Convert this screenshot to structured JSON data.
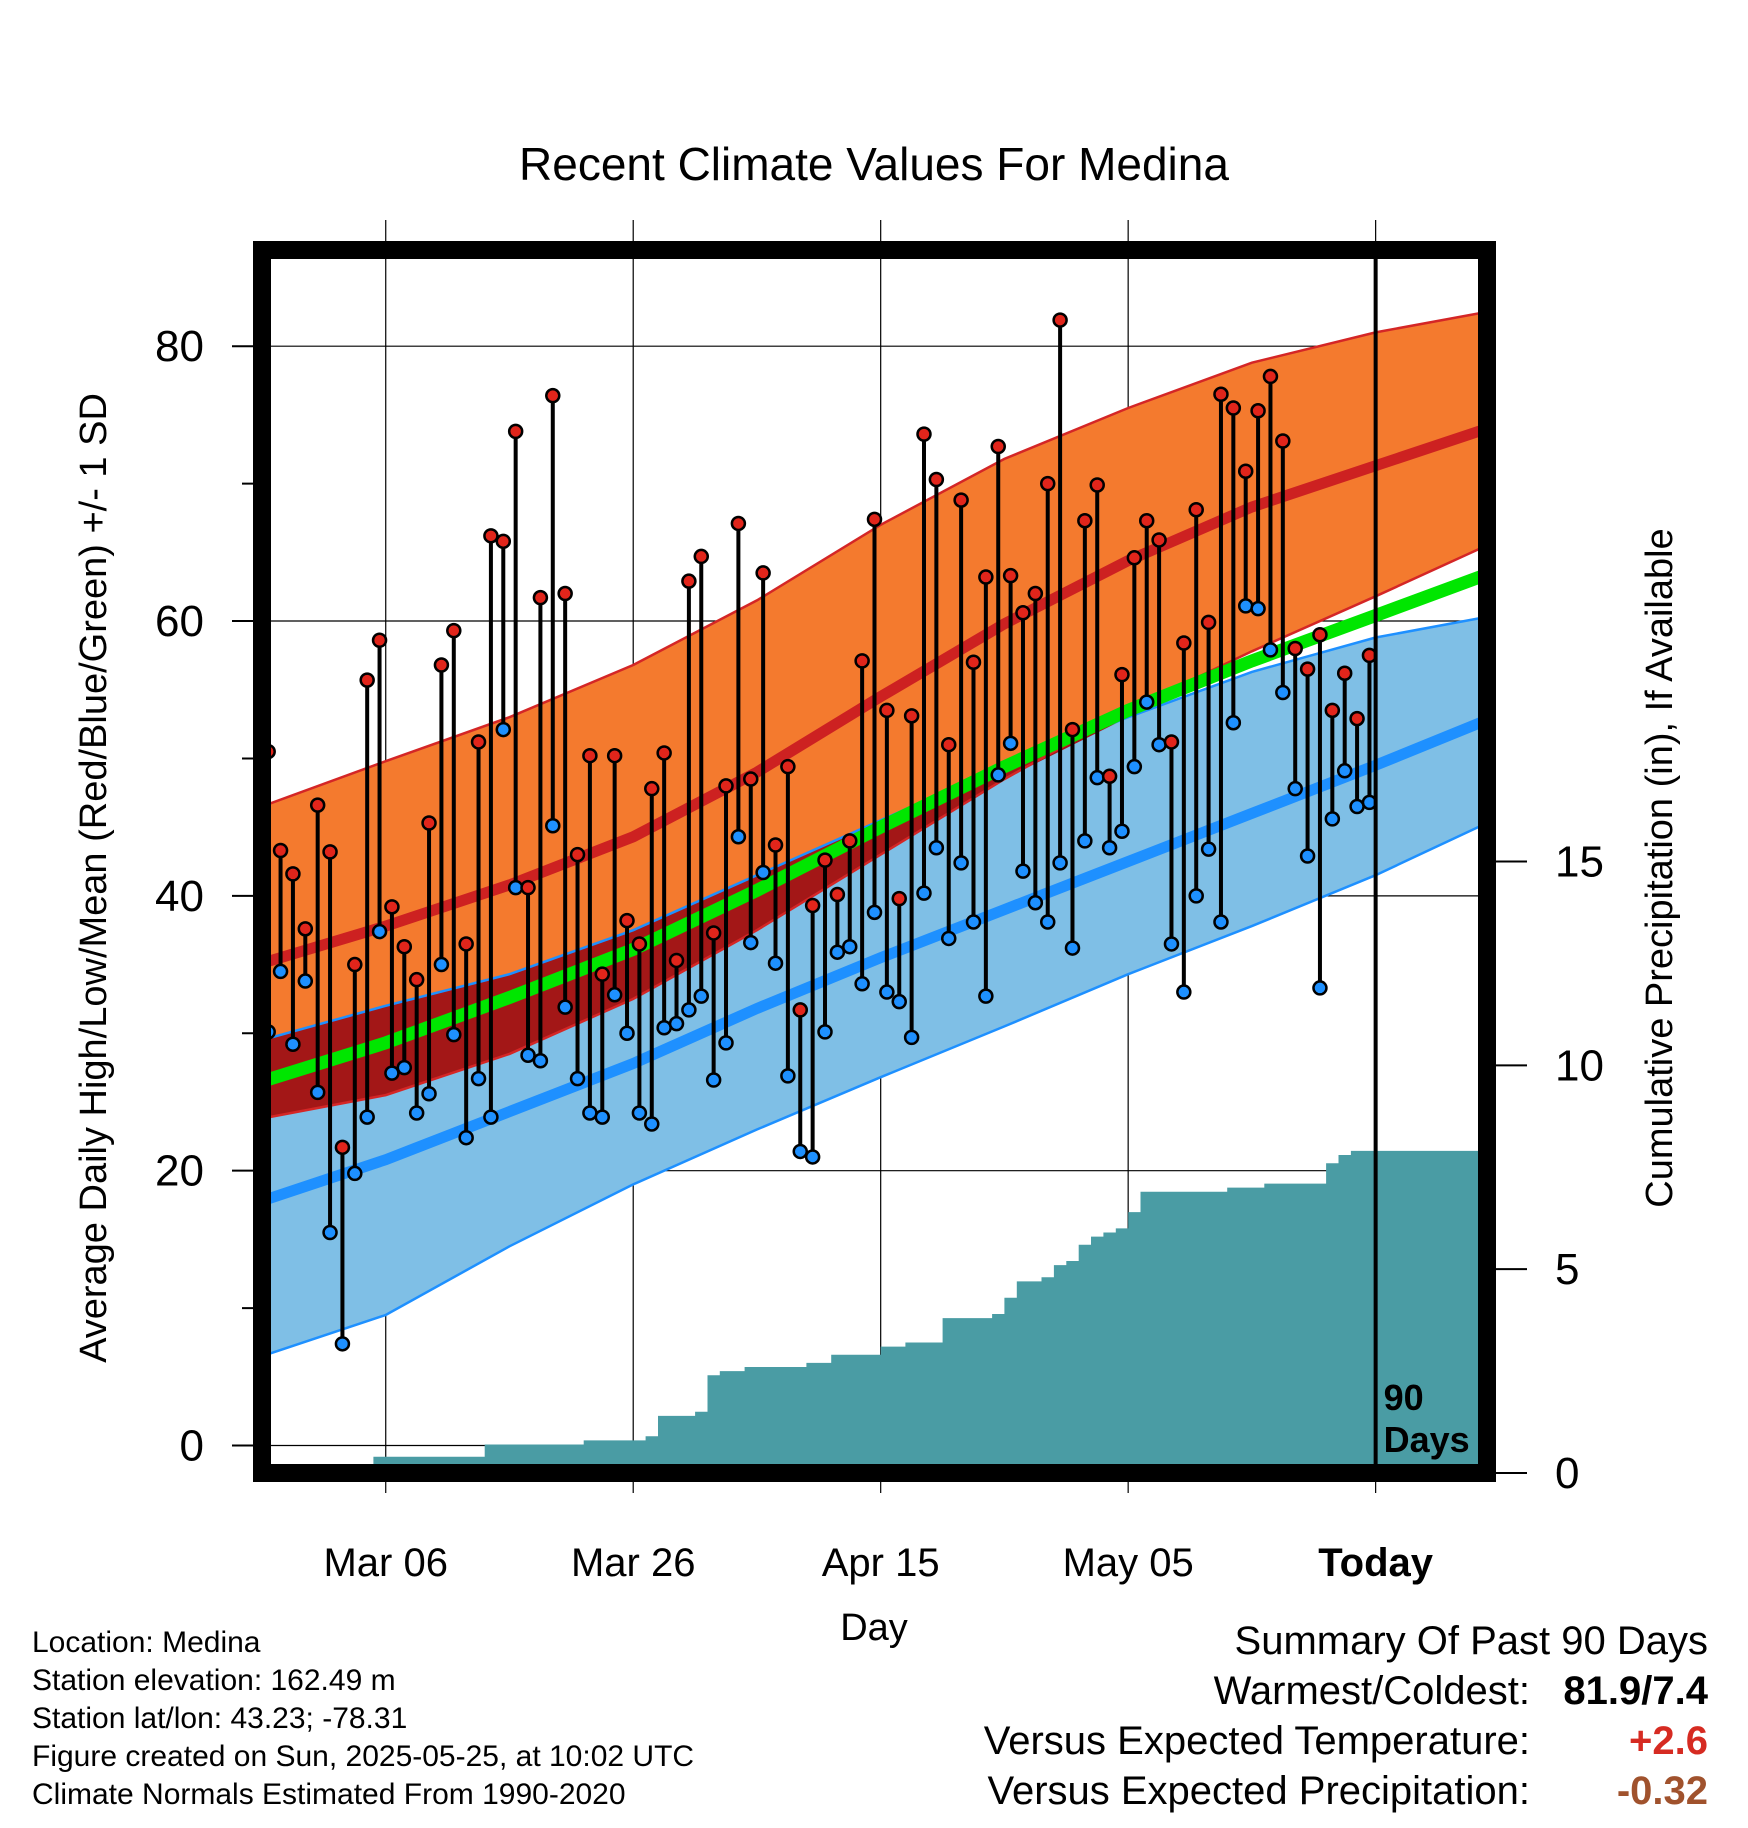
{
  "chart_data": {
    "type": "line",
    "title": "Recent Climate Values For Medina",
    "xlabel": "Day",
    "ylabel": "Average Daily High/Low/Mean (Red/Blue/Green) +/- 1 SD",
    "y2label": "Cumulative Precipitation (in), If Available",
    "xlim": [
      "2025-02-24",
      "2025-06-03"
    ],
    "ylim": [
      -2,
      87
    ],
    "y2lim": [
      0,
      30
    ],
    "yticks": [
      0,
      20,
      40,
      60,
      80
    ],
    "y2ticks": [
      0,
      5,
      10,
      15
    ],
    "x_tick_labels": [
      {
        "date": "2025-03-06",
        "label": "Mar 06"
      },
      {
        "date": "2025-03-26",
        "label": "Mar 26"
      },
      {
        "date": "2025-04-15",
        "label": "Apr 15"
      },
      {
        "date": "2025-05-05",
        "label": "May 05"
      },
      {
        "date": "2025-05-25",
        "label": "Today"
      }
    ],
    "today_marker": {
      "date": "2025-05-25",
      "label_line1": "90",
      "label_line2": "Days"
    },
    "grid": true,
    "normals": {
      "dates": [
        "2025-02-24",
        "2025-03-06",
        "2025-03-16",
        "2025-03-26",
        "2025-04-05",
        "2025-04-15",
        "2025-04-25",
        "2025-05-05",
        "2025-05-15",
        "2025-05-25",
        "2025-06-03"
      ],
      "high_mean": [
        35.1,
        37.8,
        40.8,
        44.3,
        49.0,
        54.5,
        59.8,
        64.4,
        68.3,
        71.3,
        74.0
      ],
      "high_upper": [
        46.5,
        49.8,
        53.0,
        56.8,
        61.5,
        67.0,
        71.8,
        75.5,
        78.8,
        81.0,
        82.5
      ],
      "high_lower": [
        23.8,
        25.5,
        28.5,
        32.5,
        37.5,
        43.0,
        48.5,
        53.5,
        57.8,
        61.8,
        65.5
      ],
      "low_mean": [
        17.8,
        20.8,
        24.3,
        27.8,
        31.8,
        35.5,
        39.0,
        42.5,
        46.0,
        49.5,
        52.8
      ],
      "low_upper": [
        29.5,
        32.0,
        34.3,
        37.5,
        41.5,
        45.5,
        49.5,
        53.0,
        56.3,
        58.8,
        60.3
      ],
      "low_lower": [
        6.5,
        9.5,
        14.5,
        19.0,
        23.0,
        26.8,
        30.5,
        34.3,
        37.8,
        41.5,
        45.3
      ],
      "mean": [
        26.5,
        29.3,
        32.6,
        36.1,
        40.4,
        45.0,
        49.4,
        53.5,
        57.1,
        60.4,
        63.4
      ]
    },
    "observed": {
      "series_colors": {
        "high": "#e1251b",
        "low": "#1e90ff"
      },
      "days": [
        {
          "date": "2025-02-24",
          "high": 50.5,
          "low": 30.1
        },
        {
          "date": "2025-02-25",
          "high": 43.3,
          "low": 34.5
        },
        {
          "date": "2025-02-26",
          "high": 41.6,
          "low": 29.2
        },
        {
          "date": "2025-02-27",
          "high": 37.6,
          "low": 33.8
        },
        {
          "date": "2025-02-28",
          "high": 46.6,
          "low": 25.7
        },
        {
          "date": "2025-03-01",
          "high": 43.2,
          "low": 15.5
        },
        {
          "date": "2025-03-02",
          "high": 21.7,
          "low": 7.4
        },
        {
          "date": "2025-03-03",
          "high": 35.0,
          "low": 19.8
        },
        {
          "date": "2025-03-04",
          "high": 55.7,
          "low": 23.9
        },
        {
          "date": "2025-03-05",
          "high": 58.6,
          "low": 37.4
        },
        {
          "date": "2025-03-06",
          "high": 39.2,
          "low": 27.1
        },
        {
          "date": "2025-03-07",
          "high": 36.3,
          "low": 27.5
        },
        {
          "date": "2025-03-08",
          "high": 33.9,
          "low": 24.2
        },
        {
          "date": "2025-03-09",
          "high": 45.3,
          "low": 25.6
        },
        {
          "date": "2025-03-10",
          "high": 56.8,
          "low": 35.0
        },
        {
          "date": "2025-03-11",
          "high": 59.3,
          "low": 29.9
        },
        {
          "date": "2025-03-12",
          "high": 36.5,
          "low": 22.4
        },
        {
          "date": "2025-03-13",
          "high": 51.2,
          "low": 26.7
        },
        {
          "date": "2025-03-14",
          "high": 66.2,
          "low": 23.9
        },
        {
          "date": "2025-03-15",
          "high": 65.8,
          "low": 52.1
        },
        {
          "date": "2025-03-16",
          "high": 73.8,
          "low": 40.6
        },
        {
          "date": "2025-03-17",
          "high": 40.6,
          "low": 28.4
        },
        {
          "date": "2025-03-18",
          "high": 61.7,
          "low": 28.0
        },
        {
          "date": "2025-03-19",
          "high": 76.4,
          "low": 45.1
        },
        {
          "date": "2025-03-20",
          "high": 62.0,
          "low": 31.9
        },
        {
          "date": "2025-03-21",
          "high": 43.0,
          "low": 26.7
        },
        {
          "date": "2025-03-22",
          "high": 50.2,
          "low": 24.2
        },
        {
          "date": "2025-03-23",
          "high": 34.3,
          "low": 23.9
        },
        {
          "date": "2025-03-24",
          "high": 50.2,
          "low": 32.8
        },
        {
          "date": "2025-03-25",
          "high": 38.2,
          "low": 30.0
        },
        {
          "date": "2025-03-26",
          "high": 36.5,
          "low": 24.2
        },
        {
          "date": "2025-03-27",
          "high": 47.8,
          "low": 23.4
        },
        {
          "date": "2025-03-28",
          "high": 50.4,
          "low": 30.4
        },
        {
          "date": "2025-03-29",
          "high": 35.3,
          "low": 30.7
        },
        {
          "date": "2025-03-30",
          "high": 62.9,
          "low": 31.7
        },
        {
          "date": "2025-03-31",
          "high": 64.7,
          "low": 32.7
        },
        {
          "date": "2025-04-01",
          "high": 37.3,
          "low": 26.6
        },
        {
          "date": "2025-04-02",
          "high": 48.0,
          "low": 29.3
        },
        {
          "date": "2025-04-03",
          "high": 67.1,
          "low": 44.3
        },
        {
          "date": "2025-04-04",
          "high": 48.5,
          "low": 36.6
        },
        {
          "date": "2025-04-05",
          "high": 63.5,
          "low": 41.7
        },
        {
          "date": "2025-04-06",
          "high": 43.7,
          "low": 35.1
        },
        {
          "date": "2025-04-07",
          "high": 49.4,
          "low": 26.9
        },
        {
          "date": "2025-04-08",
          "high": 31.7,
          "low": 21.4
        },
        {
          "date": "2025-04-09",
          "high": 39.3,
          "low": 21.0
        },
        {
          "date": "2025-04-10",
          "high": 42.6,
          "low": 30.1
        },
        {
          "date": "2025-04-11",
          "high": 40.1,
          "low": 35.9
        },
        {
          "date": "2025-04-12",
          "high": 44.0,
          "low": 36.3
        },
        {
          "date": "2025-04-13",
          "high": 57.1,
          "low": 33.6
        },
        {
          "date": "2025-04-14",
          "high": 67.4,
          "low": 38.8
        },
        {
          "date": "2025-04-15",
          "high": 53.5,
          "low": 33.0
        },
        {
          "date": "2025-04-16",
          "high": 39.8,
          "low": 32.3
        },
        {
          "date": "2025-04-17",
          "high": 53.1,
          "low": 29.7
        },
        {
          "date": "2025-04-18",
          "high": 73.6,
          "low": 40.2
        },
        {
          "date": "2025-04-19",
          "high": 70.3,
          "low": 43.5
        },
        {
          "date": "2025-04-20",
          "high": 51.0,
          "low": 36.9
        },
        {
          "date": "2025-04-21",
          "high": 68.8,
          "low": 42.4
        },
        {
          "date": "2025-04-22",
          "high": 57.0,
          "low": 38.1
        },
        {
          "date": "2025-04-23",
          "high": 63.2,
          "low": 32.7
        },
        {
          "date": "2025-04-24",
          "high": 72.7,
          "low": 48.8
        },
        {
          "date": "2025-04-25",
          "high": 63.3,
          "low": 51.1
        },
        {
          "date": "2025-04-26",
          "high": 60.6,
          "low": 41.8
        },
        {
          "date": "2025-04-27",
          "high": 62.0,
          "low": 39.5
        },
        {
          "date": "2025-04-28",
          "high": 70.0,
          "low": 38.1
        },
        {
          "date": "2025-04-29",
          "high": 81.9,
          "low": 42.4
        },
        {
          "date": "2025-04-30",
          "high": 52.1,
          "low": 36.2
        },
        {
          "date": "2025-05-01",
          "high": 67.3,
          "low": 44.0
        },
        {
          "date": "2025-05-02",
          "high": 69.9,
          "low": 48.6
        },
        {
          "date": "2025-05-03",
          "high": 48.7,
          "low": 43.5
        },
        {
          "date": "2025-05-04",
          "high": 56.1,
          "low": 44.7
        },
        {
          "date": "2025-05-05",
          "high": 64.6,
          "low": 49.4
        },
        {
          "date": "2025-05-06",
          "high": 67.3,
          "low": 54.1
        },
        {
          "date": "2025-05-07",
          "high": 65.9,
          "low": 51.0
        },
        {
          "date": "2025-05-08",
          "high": 51.2,
          "low": 36.5
        },
        {
          "date": "2025-05-09",
          "high": 58.4,
          "low": 33.0
        },
        {
          "date": "2025-05-10",
          "high": 68.1,
          "low": 40.0
        },
        {
          "date": "2025-05-11",
          "high": 59.9,
          "low": 43.4
        },
        {
          "date": "2025-05-12",
          "high": 76.5,
          "low": 38.1
        },
        {
          "date": "2025-05-13",
          "high": 75.5,
          "low": 52.6
        },
        {
          "date": "2025-05-14",
          "high": 70.9,
          "low": 61.1
        },
        {
          "date": "2025-05-15",
          "high": 75.3,
          "low": 60.9
        },
        {
          "date": "2025-05-16",
          "high": 77.8,
          "low": 57.9
        },
        {
          "date": "2025-05-17",
          "high": 73.1,
          "low": 54.8
        },
        {
          "date": "2025-05-18",
          "high": 58.0,
          "low": 47.8
        },
        {
          "date": "2025-05-19",
          "high": 56.5,
          "low": 42.9
        },
        {
          "date": "2025-05-20",
          "high": 59.0,
          "low": 33.3
        },
        {
          "date": "2025-05-21",
          "high": 53.5,
          "low": 45.6
        },
        {
          "date": "2025-05-22",
          "high": 56.2,
          "low": 49.1
        },
        {
          "date": "2025-05-23",
          "high": 52.9,
          "low": 46.5
        },
        {
          "date": "2025-05-24",
          "high": 57.5,
          "low": 46.8
        }
      ]
    },
    "cumulative_precipitation": {
      "dates": [
        "2025-02-24",
        "2025-03-04",
        "2025-03-05",
        "2025-03-13",
        "2025-03-14",
        "2025-03-20",
        "2025-03-22",
        "2025-03-27",
        "2025-03-28",
        "2025-03-31",
        "2025-04-01",
        "2025-04-02",
        "2025-04-04",
        "2025-04-09",
        "2025-04-11",
        "2025-04-14",
        "2025-04-15",
        "2025-04-17",
        "2025-04-19",
        "2025-04-20",
        "2025-04-24",
        "2025-04-25",
        "2025-04-26",
        "2025-04-28",
        "2025-04-29",
        "2025-04-30",
        "2025-05-01",
        "2025-05-02",
        "2025-05-03",
        "2025-05-04",
        "2025-05-05",
        "2025-05-06",
        "2025-05-07",
        "2025-05-08",
        "2025-05-13",
        "2025-05-16",
        "2025-05-20",
        "2025-05-21",
        "2025-05-22",
        "2025-05-23",
        "2025-06-03"
      ],
      "inches": [
        0.0,
        0.0,
        0.4,
        0.4,
        0.7,
        0.7,
        0.8,
        0.9,
        1.4,
        1.5,
        2.4,
        2.5,
        2.6,
        2.7,
        2.9,
        2.9,
        3.1,
        3.2,
        3.2,
        3.8,
        3.9,
        4.3,
        4.7,
        4.8,
        5.1,
        5.2,
        5.6,
        5.8,
        5.9,
        6.0,
        6.4,
        6.9,
        6.9,
        6.9,
        7.0,
        7.1,
        7.1,
        7.6,
        7.8,
        7.9,
        7.9
      ]
    },
    "colors": {
      "high_band": "#f47a2e",
      "high_band_edge": "#d42626",
      "high_mean_line": "#cd2121",
      "overlap_band": "#a31717",
      "low_band": "#7fbfe6",
      "low_band_edge": "#1e90ff",
      "low_mean_line": "#1e90ff",
      "mean_line": "#00e600",
      "precip": "#4a9ca4"
    }
  },
  "info": {
    "location": "Location: Medina",
    "elevation": "Station elevation: 162.49 m",
    "latlon": "Station lat/lon: 43.23; -78.31",
    "created": "Figure created on Sun, 2025-05-25, at 10:02 UTC",
    "normals": "Climate Normals Estimated From 1990-2020"
  },
  "summary": {
    "title": "Summary Of Past 90 Days",
    "warmest_label": "Warmest/Coldest:",
    "warmest_value": "81.9/7.4",
    "temp_label": "Versus Expected Temperature:",
    "temp_value": "+2.6",
    "temp_color": "#d62b22",
    "precip_label": "Versus Expected Precipitation:",
    "precip_value": "-0.32",
    "precip_color": "#a0522d"
  }
}
